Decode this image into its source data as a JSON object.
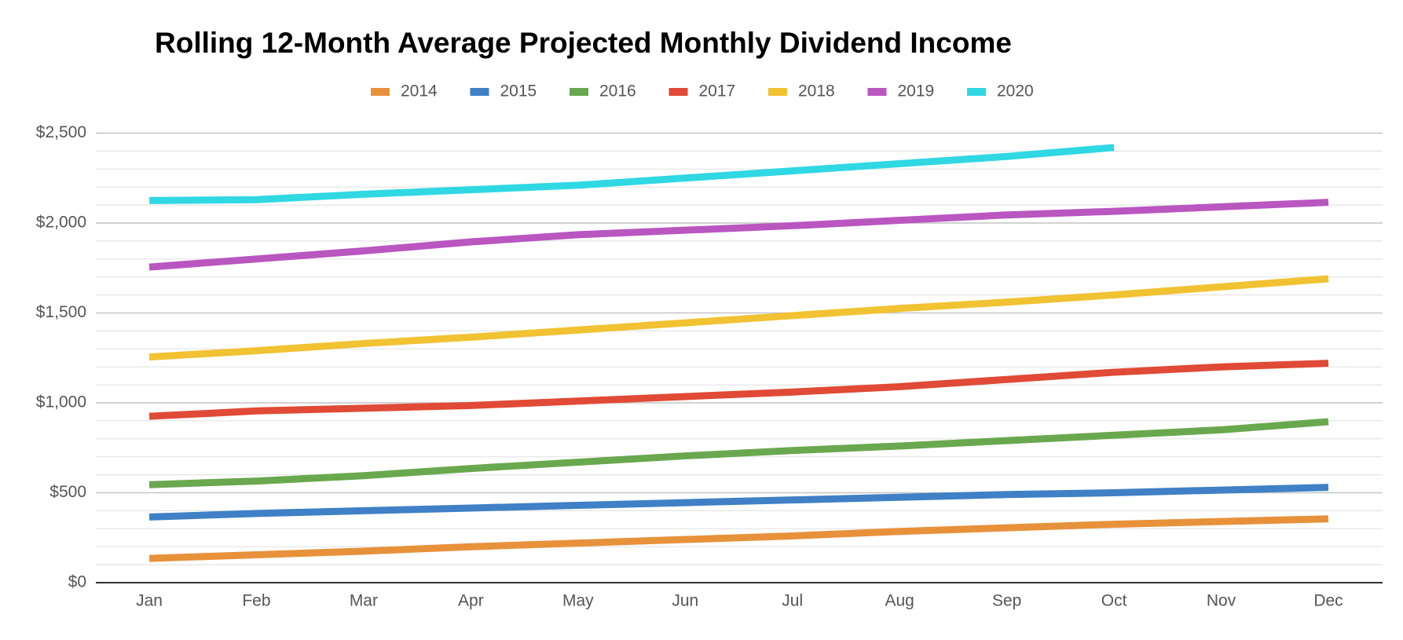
{
  "chart_data": {
    "type": "line",
    "title": "Rolling 12-Month Average Projected Monthly Dividend Income",
    "categories": [
      "Jan",
      "Feb",
      "Mar",
      "Apr",
      "May",
      "Jun",
      "Jul",
      "Aug",
      "Sep",
      "Oct",
      "Nov",
      "Dec"
    ],
    "series": [
      {
        "name": "2014",
        "color": "#e8913b",
        "values": [
          135,
          155,
          175,
          200,
          220,
          240,
          260,
          285,
          305,
          325,
          340,
          355
        ]
      },
      {
        "name": "2015",
        "color": "#3f80c6",
        "values": [
          365,
          385,
          400,
          415,
          430,
          445,
          460,
          475,
          490,
          500,
          515,
          530
        ]
      },
      {
        "name": "2016",
        "color": "#6aa84f",
        "values": [
          545,
          565,
          595,
          635,
          670,
          705,
          735,
          760,
          790,
          820,
          850,
          895
        ]
      },
      {
        "name": "2017",
        "color": "#e04a36",
        "values": [
          925,
          955,
          970,
          985,
          1010,
          1035,
          1060,
          1090,
          1130,
          1170,
          1200,
          1220
        ]
      },
      {
        "name": "2018",
        "color": "#f1c232",
        "values": [
          1255,
          1290,
          1330,
          1365,
          1405,
          1445,
          1485,
          1525,
          1560,
          1600,
          1645,
          1690
        ]
      },
      {
        "name": "2019",
        "color": "#b956c0",
        "values": [
          1755,
          1800,
          1845,
          1895,
          1935,
          1960,
          1985,
          2015,
          2045,
          2065,
          2090,
          2115
        ]
      },
      {
        "name": "2020",
        "color": "#2fd8e3",
        "values": [
          2125,
          2130,
          2160,
          2185,
          2210,
          2250,
          2290,
          2330,
          2370,
          2420,
          null,
          null
        ]
      }
    ],
    "ylim": [
      0,
      2500
    ],
    "yticks": [
      {
        "value": 0,
        "label": "$0"
      },
      {
        "value": 500,
        "label": "$500"
      },
      {
        "value": 1000,
        "label": "$1,000"
      },
      {
        "value": 1500,
        "label": "$1,500"
      },
      {
        "value": 2000,
        "label": "$2,000"
      },
      {
        "value": 2500,
        "label": "$2,500"
      }
    ],
    "minor_yticks": [
      100,
      200,
      300,
      400,
      600,
      700,
      800,
      900,
      1100,
      1200,
      1300,
      1400,
      1600,
      1700,
      1800,
      1900,
      2100,
      2200,
      2300,
      2400
    ],
    "grid": true,
    "legend": "top"
  }
}
